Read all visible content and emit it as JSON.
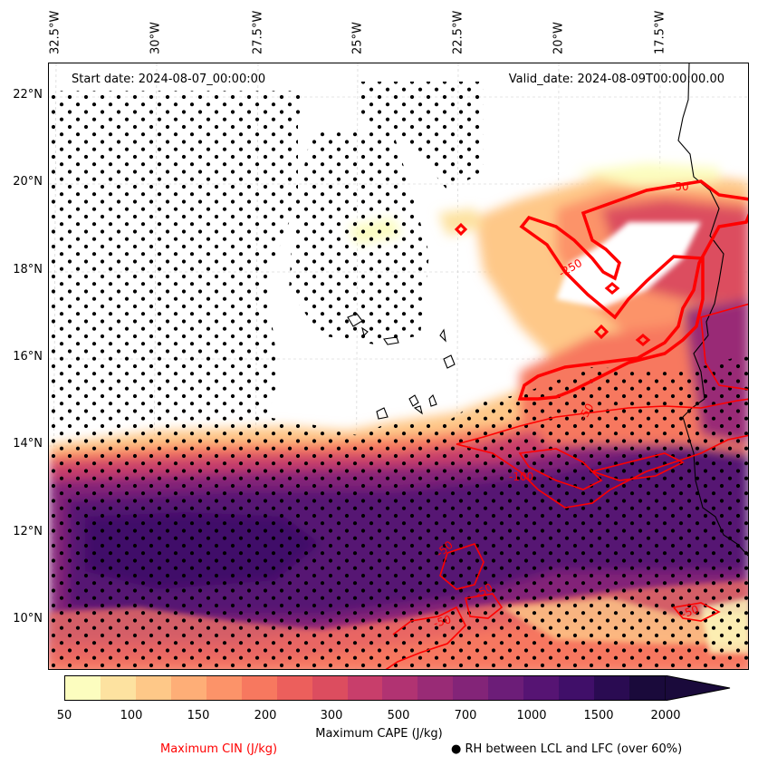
{
  "map": {
    "start_date": "Start date: 2024-08-07_00:00:00",
    "valid_date": "Valid_date: 2024-08-09T00:00:00.00",
    "lon_labels": [
      "32.5°W",
      "30°W",
      "27.5°W",
      "25°W",
      "22.5°W",
      "20°W",
      "17.5°W"
    ],
    "lat_labels": [
      "22°N",
      "20°N",
      "18°N",
      "16°N",
      "14°N",
      "12°N",
      "10°N"
    ],
    "cin_contour_labels": [
      "-50",
      "-250",
      "-50",
      "-100",
      "-50",
      "-50",
      "-50",
      "-50"
    ]
  },
  "colorbar": {
    "ticks": [
      "50",
      "100",
      "150",
      "200",
      "300",
      "500",
      "700",
      "1000",
      "1500",
      "2000"
    ],
    "label": "Maximum CAPE (J/kg)",
    "colors": [
      "#fcfdbf",
      "#fde2a0",
      "#fec888",
      "#feae77",
      "#fc9369",
      "#f7785f",
      "#ec5f5c",
      "#dc4d5f",
      "#c83e6b",
      "#b13372",
      "#992b76",
      "#832478",
      "#6c1d78",
      "#561473",
      "#400f69",
      "#2a0b52",
      "#1a0a3b"
    ]
  },
  "legend": {
    "cin_label": "Maximum CIN (J/kg)",
    "rh_label": "RH between LCL and LFC (over 60%)",
    "rh_marker": "●"
  }
}
